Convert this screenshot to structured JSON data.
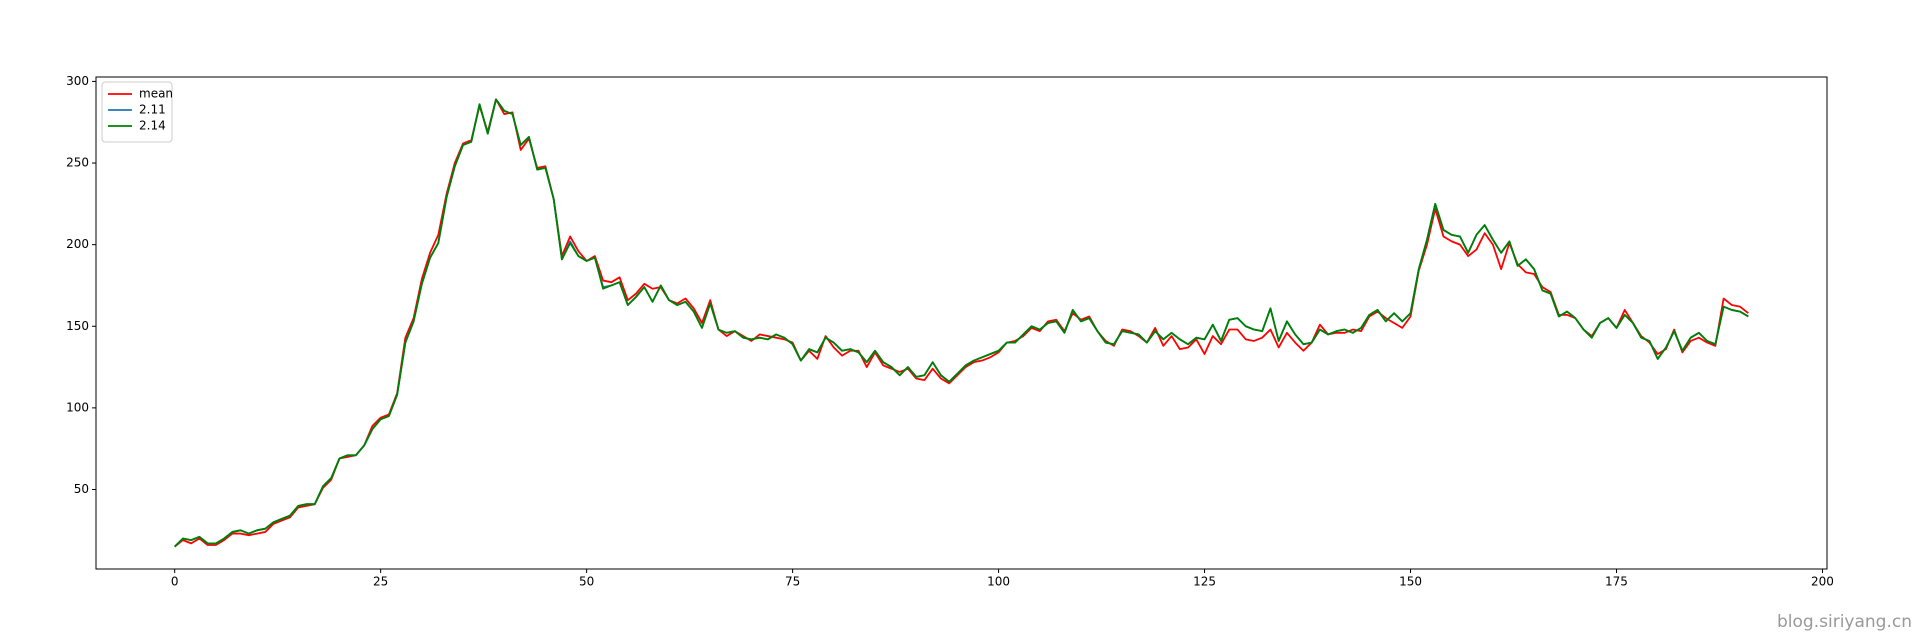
{
  "chart_data": {
    "type": "line",
    "x": [
      0,
      1,
      2,
      3,
      4,
      5,
      6,
      7,
      8,
      9,
      10,
      11,
      12,
      13,
      14,
      15,
      16,
      17,
      18,
      19,
      20,
      21,
      22,
      23,
      24,
      25,
      26,
      27,
      28,
      29,
      30,
      31,
      32,
      33,
      34,
      35,
      36,
      37,
      38,
      39,
      40,
      41,
      42,
      43,
      44,
      45,
      46,
      47,
      48,
      49,
      50,
      51,
      52,
      53,
      54,
      55,
      56,
      57,
      58,
      59,
      60,
      61,
      62,
      63,
      64,
      65,
      66,
      67,
      68,
      69,
      70,
      71,
      72,
      73,
      74,
      75,
      76,
      77,
      78,
      79,
      80,
      81,
      82,
      83,
      84,
      85,
      86,
      87,
      88,
      89,
      90,
      91,
      92,
      93,
      94,
      95,
      96,
      97,
      98,
      99,
      100,
      101,
      102,
      103,
      104,
      105,
      106,
      107,
      108,
      109,
      110,
      111,
      112,
      113,
      114,
      115,
      116,
      117,
      118,
      119,
      120,
      121,
      122,
      123,
      124,
      125,
      126,
      127,
      128,
      129,
      130,
      131,
      132,
      133,
      134,
      135,
      136,
      137,
      138,
      139,
      140,
      141,
      142,
      143,
      144,
      145,
      146,
      147,
      148,
      149,
      150,
      151,
      152,
      153,
      154,
      155,
      156,
      157,
      158,
      159,
      160,
      161,
      162,
      163,
      164,
      165,
      166,
      167,
      168,
      169,
      170,
      171,
      172,
      173,
      174,
      175,
      176,
      177,
      178,
      179,
      180,
      181,
      182,
      183,
      184,
      185,
      186,
      187,
      188,
      189,
      190,
      191
    ],
    "series": [
      {
        "name": "mean",
        "color": "#ff0000",
        "values": [
          15,
          19,
          17,
          20,
          16,
          16,
          19,
          23,
          23,
          22,
          23,
          24,
          29,
          31,
          33,
          39,
          40,
          41,
          51,
          56,
          69,
          70,
          71,
          77,
          89,
          94,
          96,
          109,
          143,
          155,
          179,
          195,
          206,
          231,
          250,
          262,
          264,
          285,
          269,
          289,
          280,
          281,
          258,
          265,
          247,
          248,
          228,
          193,
          205,
          196,
          190,
          193,
          178,
          177,
          180,
          166,
          170,
          176,
          173,
          174,
          166,
          164,
          167,
          161,
          152,
          166,
          148,
          144,
          147,
          144,
          141,
          145,
          144,
          143,
          142,
          140,
          129,
          135,
          130,
          144,
          137,
          132,
          135,
          135,
          125,
          134,
          126,
          124,
          122,
          124,
          118,
          117,
          124,
          118,
          115,
          120,
          125,
          128,
          129,
          131,
          134,
          140,
          141,
          144,
          149,
          147,
          153,
          154,
          147,
          158,
          154,
          156,
          147,
          141,
          138,
          148,
          147,
          144,
          140,
          149,
          138,
          144,
          136,
          137,
          142,
          133,
          144,
          139,
          148,
          148,
          142,
          141,
          143,
          148,
          137,
          146,
          140,
          135,
          140,
          151,
          145,
          146,
          146,
          148,
          147,
          156,
          159,
          155,
          152,
          149,
          156,
          184,
          200,
          222,
          205,
          202,
          200,
          193,
          197,
          207,
          200,
          185,
          201,
          188,
          183,
          182,
          174,
          171,
          157,
          157,
          155,
          148,
          144,
          152,
          155,
          149,
          160,
          152,
          144,
          140,
          133,
          136,
          148,
          134,
          141,
          143,
          140,
          138,
          167,
          163,
          162,
          158
        ]
      },
      {
        "name": "2.11",
        "color": "#1f77b4",
        "values": [
          15,
          20,
          19,
          21,
          17,
          17,
          20,
          24,
          25,
          23,
          25,
          26,
          30,
          32,
          34,
          40,
          41,
          41,
          52,
          57,
          69,
          71,
          71,
          77,
          87,
          93,
          95,
          108,
          140,
          153,
          176,
          192,
          201,
          229,
          248,
          261,
          263,
          286,
          268,
          289,
          282,
          280,
          261,
          266,
          246,
          247,
          228,
          191,
          202,
          193,
          190,
          192,
          174,
          175,
          177,
          163,
          168,
          174,
          165,
          175,
          166,
          163,
          165,
          159,
          149,
          164,
          148,
          146,
          147,
          143,
          142,
          143,
          142,
          145,
          143,
          139,
          129,
          136,
          134,
          143,
          140,
          135,
          136,
          134,
          128,
          135,
          128,
          125,
          120,
          125,
          119,
          120,
          128,
          120,
          116,
          121,
          126,
          129,
          131,
          133,
          135,
          140,
          140,
          145,
          150,
          148,
          152,
          153,
          146,
          160,
          153,
          155,
          147,
          140,
          139,
          147,
          146,
          145,
          140,
          147,
          142,
          146,
          142,
          139,
          143,
          142,
          151,
          141,
          154,
          155,
          150,
          148,
          147,
          161,
          141,
          153,
          145,
          139,
          140,
          148,
          145,
          147,
          148,
          146,
          149,
          157,
          160,
          153,
          158,
          153,
          158,
          185,
          203,
          225,
          209,
          206,
          205,
          195,
          206,
          212,
          203,
          195,
          202,
          187,
          191,
          185,
          172,
          170,
          156,
          159,
          155,
          148,
          143,
          152,
          155,
          149,
          157,
          152,
          143,
          141,
          130,
          137,
          147,
          135,
          143,
          146,
          141,
          139,
          162,
          160,
          159,
          156
        ]
      },
      {
        "name": "2.14",
        "color": "#008000",
        "values": [
          15,
          20,
          19,
          21,
          17,
          17,
          20,
          24,
          25,
          23,
          25,
          26,
          30,
          32,
          34,
          40,
          41,
          41,
          52,
          57,
          69,
          71,
          71,
          77,
          87,
          93,
          95,
          108,
          140,
          153,
          176,
          192,
          201,
          229,
          248,
          261,
          263,
          286,
          268,
          289,
          282,
          280,
          261,
          266,
          246,
          247,
          228,
          191,
          201,
          193,
          190,
          192,
          173,
          175,
          177,
          163,
          168,
          174,
          165,
          175,
          166,
          163,
          165,
          159,
          149,
          164,
          148,
          146,
          147,
          143,
          142,
          143,
          142,
          145,
          143,
          139,
          129,
          136,
          134,
          143,
          140,
          135,
          136,
          134,
          128,
          135,
          128,
          125,
          120,
          125,
          119,
          120,
          128,
          120,
          116,
          121,
          126,
          129,
          131,
          133,
          135,
          140,
          140,
          145,
          150,
          148,
          152,
          153,
          146,
          160,
          153,
          155,
          147,
          140,
          139,
          147,
          146,
          145,
          140,
          147,
          142,
          146,
          142,
          139,
          143,
          142,
          151,
          141,
          154,
          155,
          150,
          148,
          147,
          161,
          141,
          153,
          145,
          139,
          140,
          148,
          145,
          147,
          148,
          146,
          149,
          157,
          160,
          153,
          158,
          153,
          158,
          185,
          203,
          225,
          209,
          206,
          205,
          195,
          206,
          212,
          203,
          195,
          202,
          187,
          191,
          185,
          172,
          170,
          156,
          159,
          155,
          148,
          143,
          152,
          155,
          149,
          157,
          152,
          143,
          141,
          130,
          137,
          147,
          135,
          143,
          146,
          141,
          139,
          162,
          160,
          159,
          156
        ]
      }
    ],
    "xlim": [
      -9.55,
      200.55
    ],
    "xticks": [
      0,
      25,
      50,
      75,
      100,
      125,
      150,
      175,
      200
    ],
    "ylim": [
      1.3,
      302.7
    ],
    "yticks": [
      50,
      100,
      150,
      200,
      250,
      300
    ],
    "legend": "upper left"
  },
  "watermark": "blog.siriyang.cn"
}
